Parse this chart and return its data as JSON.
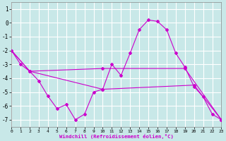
{
  "bg_color": "#c8e8e8",
  "grid_color": "#b0d8d8",
  "line_color": "#cc00cc",
  "xlabel": "Windchill (Refroidissement éolien,°C)",
  "xlim": [
    0,
    23
  ],
  "ylim": [
    -7.5,
    1.5
  ],
  "yticks": [
    1,
    0,
    -1,
    -2,
    -3,
    -4,
    -5,
    -6,
    -7
  ],
  "xticks": [
    0,
    1,
    2,
    3,
    4,
    5,
    6,
    7,
    8,
    9,
    10,
    11,
    12,
    13,
    14,
    15,
    16,
    17,
    18,
    19,
    20,
    21,
    22,
    23
  ],
  "line1_x": [
    0,
    1,
    2,
    3,
    4,
    5,
    6,
    7,
    8,
    9,
    10,
    11,
    12,
    13,
    14,
    15,
    16,
    17,
    18,
    19,
    20,
    21,
    22,
    23
  ],
  "line1_y": [
    -2.0,
    -3.0,
    -3.5,
    -4.2,
    -5.3,
    -6.2,
    -5.9,
    -7.0,
    -6.6,
    -5.0,
    -4.8,
    -3.0,
    -3.8,
    -2.2,
    -0.5,
    0.2,
    0.1,
    -0.5,
    -2.2,
    -3.2,
    -4.6,
    -5.35,
    -6.6,
    -7.0
  ],
  "line2_x": [
    0,
    2,
    10,
    19,
    23
  ],
  "line2_y": [
    -2.0,
    -3.5,
    -3.3,
    -3.3,
    -7.0
  ],
  "line3_x": [
    0,
    2,
    10,
    20,
    23
  ],
  "line3_y": [
    -2.0,
    -3.5,
    -4.8,
    -4.5,
    -7.0
  ],
  "title_color": "#cc00cc",
  "xlabel_color": "#cc00cc"
}
